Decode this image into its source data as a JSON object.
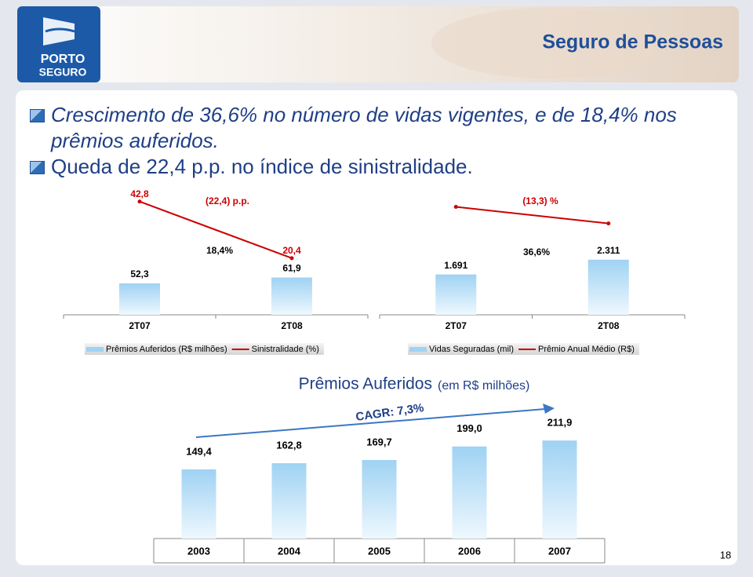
{
  "header": {
    "title": "Seguro de Pessoas",
    "logo_line1": "PORTO",
    "logo_line2": "SEGURO"
  },
  "bullets": [
    "Crescimento de 36,6% no número de vidas vigentes, e de 18,4% nos prêmios auferidos.",
    "Queda de 22,4 p.p. no índice de sinistralidade."
  ],
  "page_number": "18",
  "chart_data": [
    {
      "type": "combo",
      "categories": [
        "2T07",
        "2T08"
      ],
      "ylim": [
        0,
        210
      ],
      "y2lim": [
        -2,
        48
      ],
      "series": [
        {
          "name": "Prêmios Auferidos (R$ milhões)",
          "type": "bar",
          "color": "#9fd2f3",
          "values": [
            52.3,
            61.9
          ],
          "value_labels": [
            "52,3",
            "61,9"
          ]
        },
        {
          "name": "Sinistralidade (%)",
          "type": "line",
          "axis": "y2",
          "color": "#cc0000",
          "values": [
            42.8,
            20.4
          ],
          "value_labels": [
            "42,8",
            "20,4"
          ]
        }
      ],
      "annotations": [
        "18,4%",
        "(22,4) p.p."
      ]
    },
    {
      "type": "combo",
      "categories": [
        "2T07",
        "2T08"
      ],
      "ylim": [
        0,
        5300
      ],
      "y2lim": [
        13,
        143
      ],
      "series": [
        {
          "name": "Vidas Seguradas (mil)",
          "type": "bar",
          "color": "#9fd2f3",
          "values": [
            1691,
            2311
          ],
          "value_labels": [
            "1.691",
            "2.311"
          ]
        },
        {
          "name": "Prêmio Anual Médio (R$)",
          "type": "line",
          "axis": "y2",
          "color": "#cc0000",
          "values": [
            124,
            107
          ]
        }
      ],
      "annotations": [
        "36,6%",
        "(13,3) %"
      ]
    },
    {
      "type": "bar",
      "title": "Prêmios Auferidos",
      "subtitle": "(em R$ milhões)",
      "categories": [
        "2003",
        "2004",
        "2005",
        "2006",
        "2007"
      ],
      "values": [
        149.4,
        162.8,
        169.7,
        199.0,
        211.9
      ],
      "value_labels": [
        "149,4",
        "162,8",
        "169,7",
        "199,0",
        "211,9"
      ],
      "color": "#9fd2f3",
      "ylim": [
        0,
        280
      ],
      "annotations": [
        "CAGR: 7,3%"
      ]
    }
  ]
}
